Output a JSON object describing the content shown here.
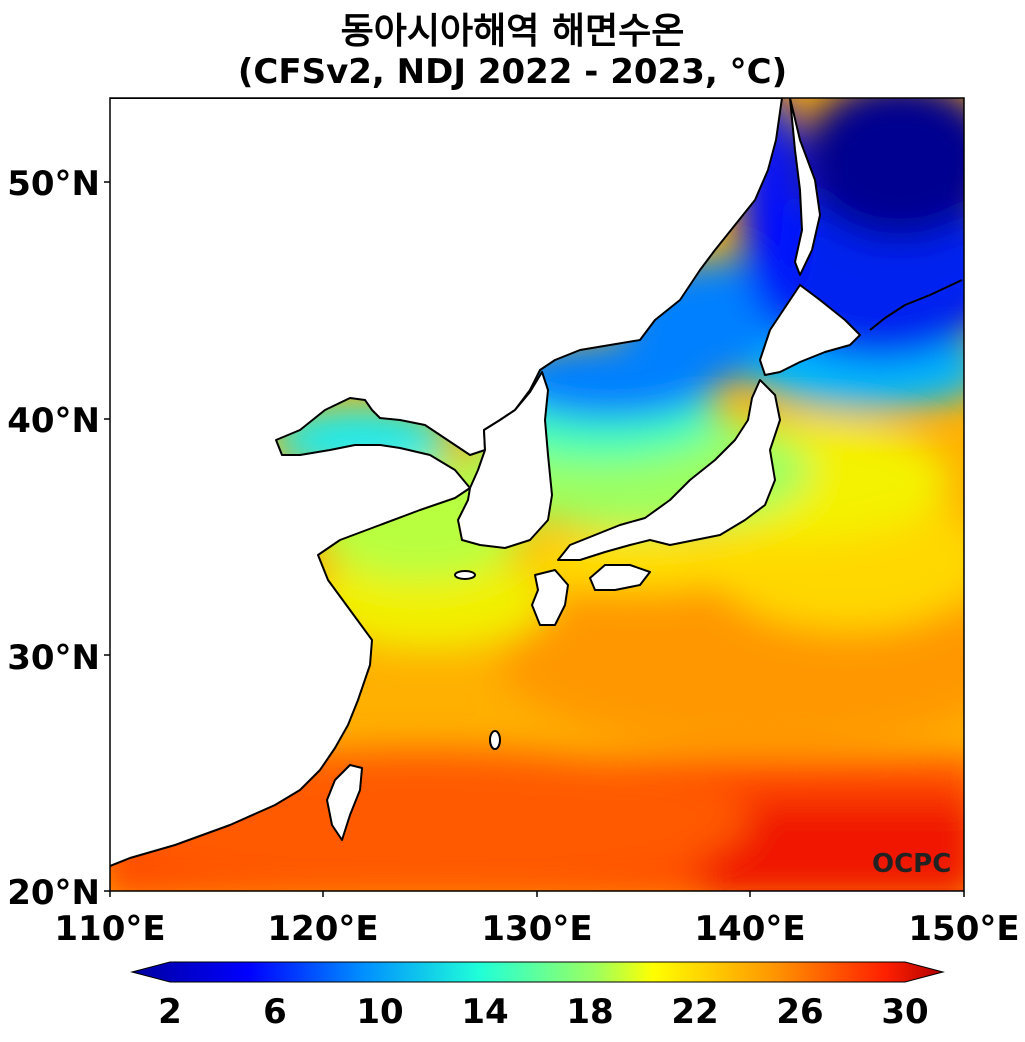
{
  "title": {
    "line1": "동아시아해역 해면수온",
    "line2": "(CFSv2, NDJ 2022 - 2023, °C)"
  },
  "map": {
    "lon_range": [
      110,
      150
    ],
    "lat_range": [
      20,
      53.5
    ],
    "lon_ticks": [
      "110°E",
      "120°E",
      "130°E",
      "140°E",
      "150°E"
    ],
    "lat_ticks": [
      "20°N",
      "30°N",
      "40°N",
      "50°N"
    ],
    "watermark": "OCPC"
  },
  "colorbar": {
    "ticks": [
      "2",
      "6",
      "10",
      "14",
      "18",
      "22",
      "26",
      "30"
    ],
    "range": [
      2,
      30
    ],
    "colors": [
      "#00007f",
      "#0000ff",
      "#007fff",
      "#00ffff",
      "#7fff7f",
      "#ffff00",
      "#ff7f00",
      "#ff0000",
      "#7f0000"
    ]
  }
}
